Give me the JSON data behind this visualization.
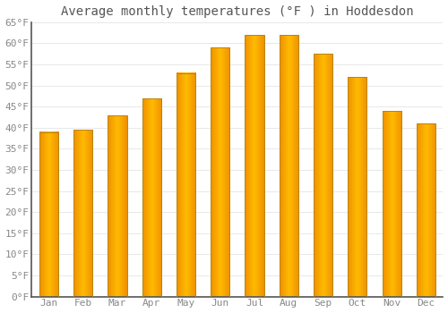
{
  "title": "Average monthly temperatures (°F ) in Hoddesdon",
  "months": [
    "Jan",
    "Feb",
    "Mar",
    "Apr",
    "May",
    "Jun",
    "Jul",
    "Aug",
    "Sep",
    "Oct",
    "Nov",
    "Dec"
  ],
  "values": [
    39.0,
    39.5,
    43.0,
    47.0,
    53.0,
    59.0,
    62.0,
    62.0,
    57.5,
    52.0,
    44.0,
    41.0
  ],
  "bar_color_center": "#FFBB00",
  "bar_color_edge": "#F09000",
  "bar_edge_color": "#B8860B",
  "ylim": [
    0,
    65
  ],
  "yticks": [
    0,
    5,
    10,
    15,
    20,
    25,
    30,
    35,
    40,
    45,
    50,
    55,
    60,
    65
  ],
  "background_color": "#FFFFFF",
  "grid_color": "#E8E8E8",
  "title_fontsize": 10,
  "tick_fontsize": 8,
  "title_color": "#555555",
  "tick_color": "#888888",
  "bar_width": 0.55
}
